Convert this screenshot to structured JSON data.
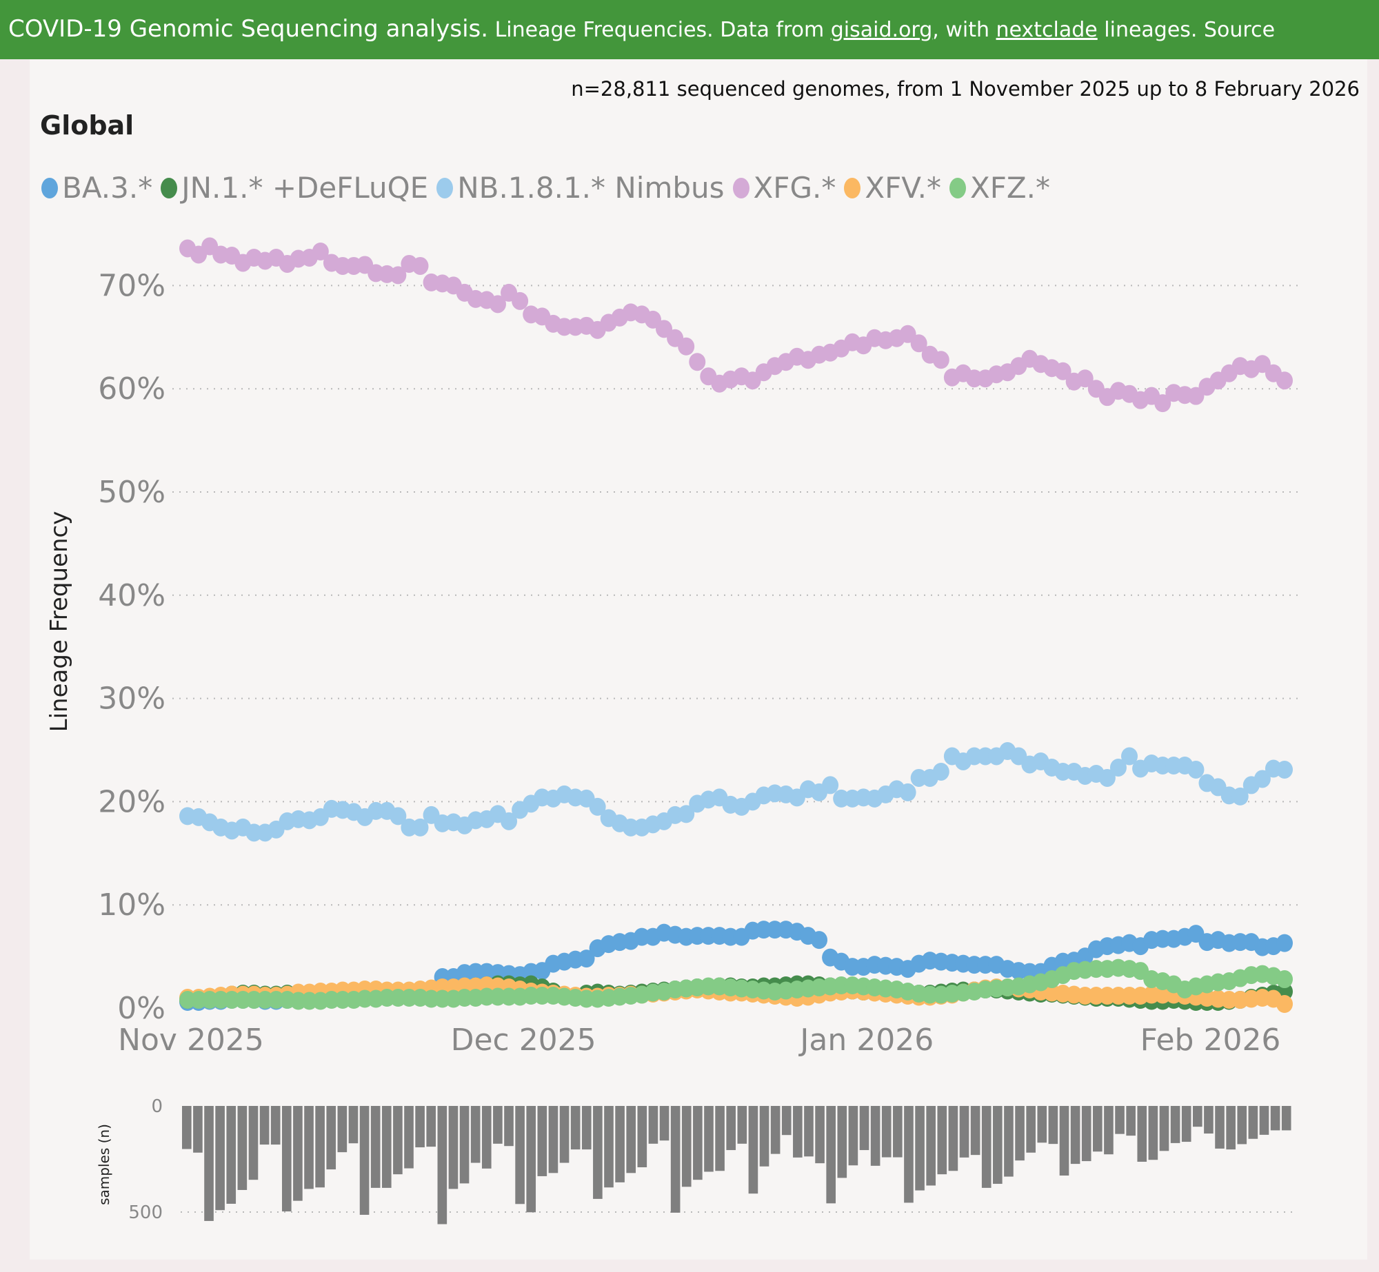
{
  "header": {
    "title_main": "COVID-19 Genomic Sequencing analysis.",
    "title_rest_1": " Lineage Frequencies. Data from ",
    "link_gisaid": "gisaid.org",
    "title_rest_2": ", with ",
    "link_nextclade": "nextclade",
    "title_rest_3": " lineages. Source"
  },
  "subtitle": "n=28,811 sequenced genomes, from 1 November 2025 up to 8 February 2026",
  "region": "Global",
  "chart_data": [
    {
      "type": "scatter",
      "title": "Global",
      "xlabel": "",
      "ylabel": "Lineage Frequency",
      "x_start": "2025-11-01",
      "x_days": 100,
      "x_ticks": [
        {
          "label": "Nov 2025",
          "day": 0
        },
        {
          "label": "Dec 2025",
          "day": 30
        },
        {
          "label": "Jan 2026",
          "day": 61
        },
        {
          "label": "Feb 2026",
          "day": 92
        }
      ],
      "y_ticks": [
        "0%",
        "10%",
        "20%",
        "30%",
        "40%",
        "50%",
        "60%",
        "70%"
      ],
      "ylim": [
        0,
        75
      ],
      "grid": true,
      "legend_position": "top-left",
      "series": [
        {
          "name": "BA.3.*",
          "color": "#5fa5dc",
          "values": [
            0.6,
            0.6,
            0.7,
            0.7,
            0.8,
            0.8,
            0.8,
            0.7,
            0.7,
            0.8,
            0.8,
            0.9,
            0.9,
            1.0,
            1.0,
            1.1,
            1.2,
            1.2,
            1.3,
            1.4,
            1.5,
            1.5,
            1.7,
            3.0,
            3.0,
            3.4,
            3.5,
            3.5,
            3.4,
            3.3,
            3.2,
            3.5,
            3.6,
            4.3,
            4.5,
            4.7,
            4.8,
            5.8,
            6.2,
            6.4,
            6.5,
            6.9,
            6.9,
            7.3,
            7.1,
            6.9,
            7.0,
            7.0,
            7.0,
            6.9,
            6.9,
            7.5,
            7.6,
            7.6,
            7.6,
            7.4,
            7.0,
            6.6,
            4.9,
            4.5,
            4.0,
            4.0,
            4.2,
            4.1,
            4.0,
            3.8,
            4.3,
            4.6,
            4.5,
            4.4,
            4.3,
            4.2,
            4.2,
            4.2,
            3.8,
            3.6,
            3.5,
            3.5,
            4.1,
            4.5,
            4.6,
            5.0,
            5.7,
            6.0,
            6.1,
            6.3,
            6.0,
            6.6,
            6.7,
            6.7,
            6.9,
            7.2,
            6.4,
            6.6,
            6.3,
            6.4,
            6.4,
            5.9,
            6.0,
            6.3
          ]
        },
        {
          "name": "JN.1.* +DeFLuQE",
          "color": "#458c4c",
          "values": [
            0.8,
            0.9,
            1.0,
            1.1,
            1.3,
            1.4,
            1.4,
            1.3,
            1.3,
            1.4,
            1.2,
            1.2,
            1.3,
            1.4,
            1.5,
            1.5,
            1.6,
            1.6,
            1.5,
            1.5,
            1.4,
            1.4,
            1.5,
            1.6,
            1.8,
            2.0,
            2.1,
            2.2,
            2.3,
            2.3,
            2.2,
            2.3,
            2.0,
            1.6,
            1.2,
            1.1,
            1.4,
            1.5,
            1.4,
            1.3,
            1.4,
            1.5,
            1.6,
            1.7,
            1.8,
            1.9,
            2.0,
            2.0,
            2.1,
            2.1,
            2.0,
            2.0,
            2.1,
            2.1,
            2.2,
            2.3,
            2.3,
            2.2,
            2.1,
            1.9,
            1.7,
            1.6,
            1.6,
            1.5,
            1.5,
            1.4,
            1.4,
            1.4,
            1.5,
            1.6,
            1.7,
            1.7,
            1.8,
            1.8,
            1.7,
            1.6,
            1.5,
            1.4,
            1.4,
            1.3,
            1.2,
            1.1,
            1.0,
            1.0,
            1.0,
            0.9,
            0.8,
            0.7,
            0.7,
            0.8,
            0.7,
            0.6,
            0.6,
            0.6,
            0.7,
            0.8,
            1.0,
            1.2,
            1.4,
            1.6
          ]
        },
        {
          "name": "NB.1.8.1.* Nimbus",
          "color": "#9ccbec",
          "values": [
            18.6,
            18.5,
            18.0,
            17.5,
            17.2,
            17.5,
            17.0,
            17.0,
            17.3,
            18.1,
            18.3,
            18.2,
            18.5,
            19.3,
            19.2,
            19.0,
            18.5,
            19.1,
            19.1,
            18.6,
            17.5,
            17.5,
            18.7,
            17.9,
            18.0,
            17.7,
            18.2,
            18.3,
            18.8,
            18.1,
            19.2,
            19.8,
            20.4,
            20.3,
            20.7,
            20.4,
            20.3,
            19.5,
            18.4,
            17.9,
            17.5,
            17.5,
            17.8,
            18.1,
            18.7,
            18.8,
            19.8,
            20.2,
            20.4,
            19.7,
            19.5,
            20.0,
            20.6,
            20.8,
            20.7,
            20.4,
            21.2,
            20.9,
            21.6,
            20.3,
            20.3,
            20.4,
            20.3,
            20.7,
            21.2,
            20.9,
            22.3,
            22.3,
            22.9,
            24.4,
            23.9,
            24.4,
            24.4,
            24.4,
            24.9,
            24.4,
            23.6,
            23.9,
            23.3,
            22.9,
            22.9,
            22.5,
            22.7,
            22.3,
            23.3,
            24.4,
            23.2,
            23.7,
            23.5,
            23.5,
            23.5,
            23.1,
            21.8,
            21.4,
            20.6,
            20.5,
            21.6,
            22.2,
            23.2,
            23.1
          ]
        },
        {
          "name": "XFG.*",
          "color": "#d4aad6",
          "values": [
            73.6,
            73.0,
            73.8,
            73.0,
            72.9,
            72.2,
            72.7,
            72.4,
            72.7,
            72.1,
            72.6,
            72.7,
            73.3,
            72.2,
            71.9,
            71.9,
            72.0,
            71.2,
            71.1,
            71.0,
            72.1,
            71.9,
            70.3,
            70.2,
            70.0,
            69.3,
            68.7,
            68.6,
            68.2,
            69.3,
            68.5,
            67.2,
            67.0,
            66.3,
            66.0,
            66.0,
            66.1,
            65.7,
            66.4,
            66.9,
            67.4,
            67.2,
            66.7,
            65.8,
            64.9,
            64.1,
            62.6,
            61.2,
            60.5,
            60.9,
            61.2,
            60.8,
            61.6,
            62.2,
            62.6,
            63.1,
            62.8,
            63.3,
            63.5,
            63.9,
            64.5,
            64.2,
            64.9,
            64.7,
            64.9,
            65.3,
            64.4,
            63.3,
            62.8,
            61.1,
            61.5,
            61.0,
            61.0,
            61.4,
            61.6,
            62.2,
            62.9,
            62.4,
            62.0,
            61.7,
            60.7,
            61.0,
            60.0,
            59.2,
            59.8,
            59.5,
            58.9,
            59.3,
            58.6,
            59.6,
            59.4,
            59.3,
            60.2,
            60.8,
            61.5,
            62.2,
            61.9,
            62.4,
            61.5,
            60.8
          ]
        },
        {
          "name": "XFV.*",
          "color": "#fbb862",
          "values": [
            1.0,
            1.0,
            1.1,
            1.2,
            1.3,
            1.3,
            1.3,
            1.2,
            1.2,
            1.3,
            1.5,
            1.5,
            1.6,
            1.6,
            1.7,
            1.7,
            1.8,
            1.8,
            1.7,
            1.7,
            1.7,
            1.8,
            1.9,
            2.0,
            2.0,
            2.1,
            2.1,
            2.2,
            2.1,
            2.0,
            1.8,
            1.6,
            1.5,
            1.4,
            1.3,
            1.2,
            1.1,
            1.1,
            1.2,
            1.2,
            1.3,
            1.3,
            1.4,
            1.5,
            1.6,
            1.7,
            1.8,
            1.7,
            1.6,
            1.5,
            1.5,
            1.4,
            1.3,
            1.2,
            1.1,
            1.0,
            1.1,
            1.3,
            1.5,
            1.6,
            1.7,
            1.6,
            1.5,
            1.4,
            1.3,
            1.2,
            1.1,
            1.1,
            1.2,
            1.3,
            1.5,
            1.7,
            1.9,
            2.0,
            2.0,
            1.9,
            1.8,
            1.6,
            1.5,
            1.4,
            1.3,
            1.2,
            1.2,
            1.2,
            1.2,
            1.2,
            1.2,
            1.3,
            1.3,
            1.3,
            1.2,
            1.1,
            1.0,
            0.9,
            0.8,
            0.8,
            0.9,
            1.0,
            0.9,
            0.4
          ]
        },
        {
          "name": "XFZ.*",
          "color": "#84cb86",
          "values": [
            0.8,
            0.8,
            0.8,
            0.8,
            0.8,
            0.8,
            0.8,
            0.8,
            0.8,
            0.8,
            0.7,
            0.7,
            0.7,
            0.8,
            0.8,
            0.8,
            0.9,
            0.9,
            1.0,
            1.0,
            1.0,
            1.0,
            0.9,
            0.9,
            0.9,
            1.0,
            1.0,
            1.1,
            1.1,
            1.1,
            1.1,
            1.2,
            1.2,
            1.2,
            1.1,
            1.0,
            0.9,
            0.9,
            1.0,
            1.1,
            1.2,
            1.3,
            1.5,
            1.6,
            1.8,
            1.9,
            2.0,
            2.1,
            2.1,
            2.0,
            1.9,
            1.8,
            1.7,
            1.6,
            1.7,
            1.8,
            1.9,
            2.0,
            2.1,
            2.2,
            2.2,
            2.1,
            2.0,
            1.9,
            1.8,
            1.6,
            1.4,
            1.3,
            1.3,
            1.4,
            1.5,
            1.6,
            1.8,
            1.9,
            2.0,
            2.1,
            2.3,
            2.5,
            2.8,
            3.2,
            3.6,
            3.7,
            3.8,
            3.8,
            3.9,
            3.8,
            3.6,
            2.8,
            2.6,
            2.3,
            1.8,
            2.1,
            2.3,
            2.5,
            2.6,
            2.9,
            3.2,
            3.3,
            3.1,
            2.8
          ]
        }
      ]
    },
    {
      "type": "bar",
      "ylabel": "samples (n)",
      "y_ticks": [
        "0",
        "500"
      ],
      "ylim": [
        0,
        560
      ],
      "orientation": "downward",
      "values": [
        203,
        220,
        542,
        491,
        461,
        396,
        348,
        182,
        182,
        497,
        447,
        391,
        384,
        299,
        218,
        176,
        513,
        386,
        386,
        322,
        294,
        195,
        192,
        557,
        391,
        365,
        268,
        295,
        178,
        189,
        462,
        501,
        331,
        316,
        268,
        205,
        205,
        438,
        384,
        360,
        316,
        289,
        178,
        163,
        503,
        381,
        348,
        310,
        306,
        208,
        178,
        413,
        285,
        226,
        137,
        243,
        238,
        270,
        459,
        339,
        280,
        208,
        282,
        242,
        242,
        456,
        398,
        375,
        322,
        306,
        243,
        231,
        386,
        367,
        333,
        257,
        220,
        173,
        179,
        328,
        273,
        260,
        215,
        228,
        132,
        140,
        263,
        254,
        212,
        175,
        169,
        98,
        130,
        201,
        205,
        180,
        155,
        136,
        115,
        115
      ]
    }
  ]
}
